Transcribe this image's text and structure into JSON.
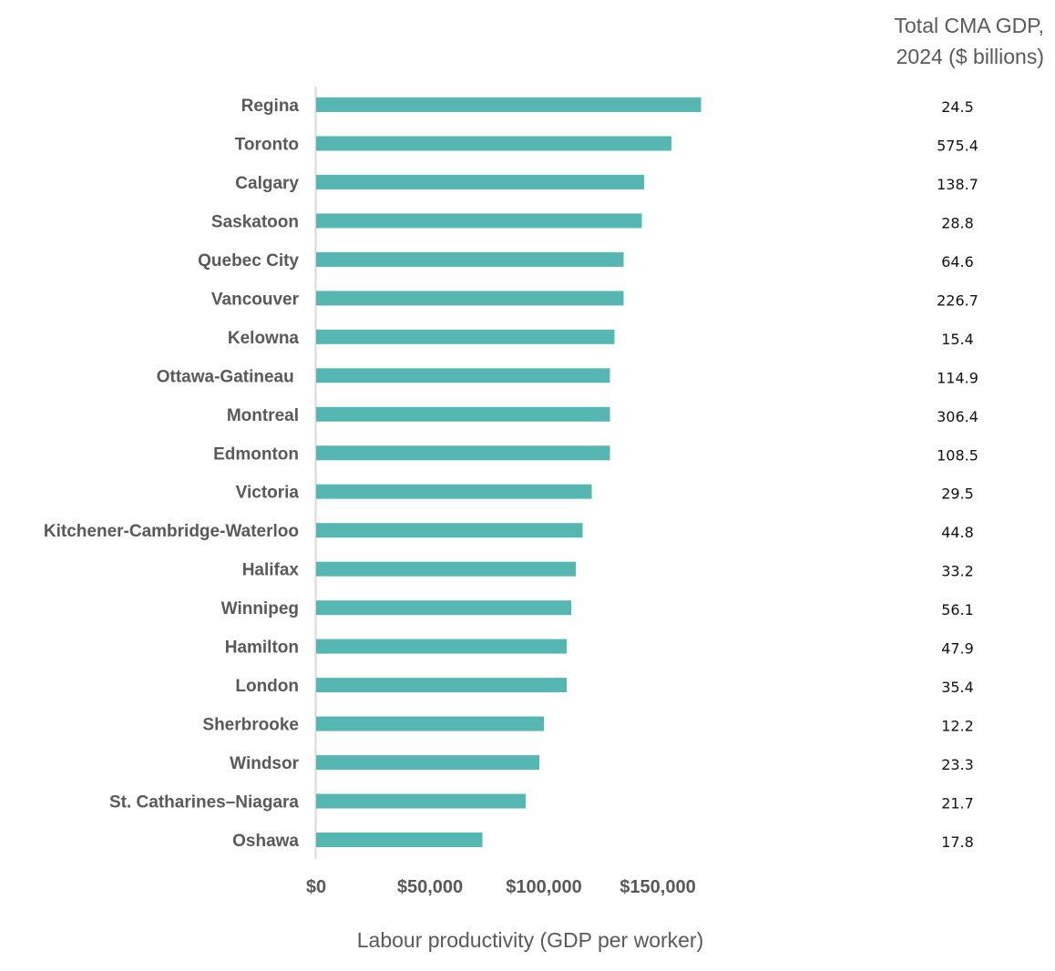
{
  "chart_data": {
    "type": "bar",
    "orientation": "horizontal",
    "title": "",
    "xlabel": "Labour productivity (GDP per worker)",
    "ylabel": "",
    "xlim": [
      0,
      170000
    ],
    "x_ticks": [
      0,
      50000,
      100000,
      150000
    ],
    "x_tick_labels": [
      "$0",
      "$50,000",
      "$100,000",
      "$150,000"
    ],
    "grid": false,
    "legend": "none",
    "bar_color": "#56B6B1",
    "categories": [
      "Regina",
      "Toronto",
      "Calgary",
      "Saskatoon",
      "Quebec City",
      "Vancouver",
      "Kelowna",
      "Ottawa-Gatineau ",
      "Montreal",
      "Edmonton",
      "Victoria",
      "Kitchener-Cambridge-Waterloo",
      "Halifax",
      "Winnipeg",
      "Hamilton",
      "London",
      "Sherbrooke",
      "Windsor",
      "St. Catharines–Niagara",
      "Oshawa"
    ],
    "values": [
      169000,
      156000,
      144000,
      143000,
      135000,
      135000,
      131000,
      129000,
      129000,
      129000,
      121000,
      117000,
      114000,
      112000,
      110000,
      110000,
      100000,
      98000,
      92000,
      73000
    ],
    "side_column": {
      "title_line1": "Total CMA GDP,",
      "title_line2": "2024 ($ billions)",
      "values": [
        "24.5",
        "575.4",
        "138.7",
        "28.8",
        "64.6",
        "226.7",
        "15.4",
        "114.9",
        "306.4",
        "108.5",
        "29.5",
        "44.8",
        "33.2",
        "56.1",
        "47.9",
        "35.4",
        "12.2",
        "23.3",
        "21.7",
        "17.8"
      ]
    }
  }
}
